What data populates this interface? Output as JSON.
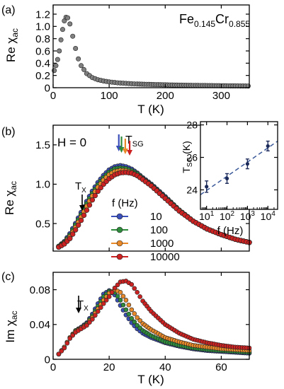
{
  "figure": {
    "panel_a": {
      "label": "(a)",
      "material": {
        "base1": "Fe",
        "sub1": "0.145",
        "base2": "Cr",
        "sub2": "0.855"
      }
    },
    "panel_b": {
      "label": "(b)",
      "field_label": "H = 0",
      "tsg_label": "T",
      "tsg_sub": "SG",
      "tx_label": "T",
      "tx_sub": "X",
      "legend_title": "f (Hz)"
    },
    "panel_c": {
      "label": "(c)",
      "tx_label": "T",
      "tx_sub": "X"
    },
    "inset": {
      "ylabel_main": "T",
      "ylabel_sub": "SG",
      "ylabel_unit": " (K)",
      "xlabel": "f (Hz)"
    }
  },
  "chart_data": [
    {
      "id": "a",
      "type": "scatter",
      "xlabel": "T (K)",
      "ylabel_main": "Re χ",
      "ylabel_sub": "ac",
      "xlim": [
        0,
        350
      ],
      "ylim": [
        0,
        1.35
      ],
      "xticks": [
        0,
        100,
        200,
        300
      ],
      "xtick_labels": [
        "0",
        "100",
        "200",
        "300"
      ],
      "yticks": [
        0,
        0.2,
        0.4,
        0.6,
        0.8,
        1.0,
        1.2
      ],
      "ytick_labels": [
        "0",
        "0.2",
        "0.4",
        "0.6",
        "0.8",
        "1.0",
        "1.2"
      ],
      "series": [
        {
          "color": "#808080",
          "x": [
            2,
            5,
            8,
            11,
            14,
            17,
            20,
            23,
            26,
            30,
            35,
            40,
            45,
            50,
            60,
            70,
            80,
            90,
            100,
            115,
            130,
            150,
            175,
            200,
            225,
            250,
            275,
            300,
            325,
            348
          ],
          "y": [
            0.28,
            0.36,
            0.46,
            0.6,
            0.78,
            0.95,
            1.09,
            1.15,
            1.14,
            1.04,
            0.84,
            0.64,
            0.47,
            0.36,
            0.23,
            0.165,
            0.13,
            0.11,
            0.095,
            0.08,
            0.07,
            0.06,
            0.053,
            0.047,
            0.042,
            0.038,
            0.035,
            0.032,
            0.03,
            0.028
          ]
        }
      ]
    },
    {
      "id": "b",
      "type": "scatter",
      "xlabel": "",
      "ylabel_main": "Re χ",
      "ylabel_sub": "ac",
      "xlim": [
        0,
        70
      ],
      "ylim": [
        0.15,
        1.75
      ],
      "xticks": [
        0,
        20,
        40,
        60
      ],
      "xtick_labels": [],
      "yticks": [
        0.5,
        1.0,
        1.5
      ],
      "ytick_labels": [
        "0.5",
        "1.0",
        "1.5"
      ],
      "series": [
        {
          "name": "10",
          "color": "#3b4fb8",
          "x": [
            2,
            4,
            6,
            8,
            10,
            12,
            14,
            16,
            18,
            20,
            22,
            24,
            26,
            28,
            30,
            32,
            35,
            40,
            45,
            50,
            55,
            60,
            65,
            70
          ],
          "y": [
            0.21,
            0.27,
            0.37,
            0.5,
            0.64,
            0.78,
            0.91,
            1.02,
            1.11,
            1.18,
            1.22,
            1.235,
            1.22,
            1.19,
            1.14,
            1.08,
            1.0,
            0.84,
            0.67,
            0.53,
            0.43,
            0.36,
            0.3,
            0.26
          ]
        },
        {
          "name": "100",
          "color": "#2e8b3c",
          "x": [
            2,
            4,
            6,
            8,
            10,
            12,
            14,
            16,
            18,
            20,
            22,
            24,
            26,
            28,
            30,
            32,
            35,
            40,
            45,
            50,
            55,
            60,
            65,
            70
          ],
          "y": [
            0.21,
            0.26,
            0.35,
            0.48,
            0.61,
            0.75,
            0.88,
            0.99,
            1.08,
            1.15,
            1.195,
            1.205,
            1.195,
            1.17,
            1.13,
            1.07,
            0.99,
            0.83,
            0.67,
            0.53,
            0.43,
            0.36,
            0.3,
            0.26
          ]
        },
        {
          "name": "1000",
          "color": "#e8892a",
          "x": [
            2,
            4,
            6,
            8,
            10,
            12,
            14,
            16,
            18,
            20,
            22,
            24,
            26,
            28,
            30,
            32,
            35,
            40,
            45,
            50,
            55,
            60,
            65,
            70
          ],
          "y": [
            0.2,
            0.25,
            0.33,
            0.45,
            0.58,
            0.72,
            0.85,
            0.96,
            1.05,
            1.12,
            1.16,
            1.175,
            1.17,
            1.15,
            1.11,
            1.06,
            0.98,
            0.82,
            0.66,
            0.53,
            0.43,
            0.36,
            0.3,
            0.26
          ]
        },
        {
          "name": "10000",
          "color": "#cc2222",
          "x": [
            2,
            4,
            6,
            8,
            10,
            12,
            14,
            16,
            18,
            20,
            22,
            24,
            26,
            28,
            30,
            32,
            35,
            40,
            45,
            50,
            55,
            60,
            65,
            70
          ],
          "y": [
            0.2,
            0.24,
            0.31,
            0.42,
            0.54,
            0.67,
            0.8,
            0.91,
            1.0,
            1.07,
            1.12,
            1.145,
            1.15,
            1.14,
            1.11,
            1.06,
            0.98,
            0.82,
            0.66,
            0.53,
            0.43,
            0.36,
            0.3,
            0.26
          ]
        }
      ]
    },
    {
      "id": "inset",
      "type": "scatter",
      "xscale": "log",
      "xlim": [
        5,
        30000
      ],
      "ylim": [
        22.8,
        28.2
      ],
      "xticks": [
        10,
        100,
        1000,
        10000
      ],
      "xtick_labels": [
        [
          "10",
          "1"
        ],
        [
          "10",
          "2"
        ],
        [
          "10",
          "3"
        ],
        [
          "10",
          "4"
        ]
      ],
      "yticks": [
        24,
        26,
        28
      ],
      "ytick_labels": [
        "24",
        "26",
        "28"
      ],
      "points": {
        "x": [
          10,
          100,
          1000,
          10000
        ],
        "y": [
          24.2,
          24.7,
          25.6,
          26.7
        ],
        "err": [
          0.35,
          0.3,
          0.3,
          0.3
        ]
      },
      "fit": {
        "x": [
          5,
          30000
        ],
        "y": [
          23.7,
          27.0
        ],
        "style": "dashed",
        "color": "#3c5a9a"
      }
    },
    {
      "id": "c",
      "type": "scatter",
      "xlabel": "T (K)",
      "ylabel_main": "Im χ",
      "ylabel_sub": "ac",
      "xlim": [
        0,
        70
      ],
      "ylim": [
        0,
        0.1
      ],
      "xticks": [
        0,
        20,
        40,
        60
      ],
      "xtick_labels": [
        "0",
        "20",
        "40",
        "60"
      ],
      "yticks": [
        0,
        0.04,
        0.08
      ],
      "ytick_labels": [
        "0",
        "0.04",
        "0.08"
      ],
      "series": [
        {
          "name": "10",
          "color": "#3b4fb8",
          "x": [
            2,
            4,
            6,
            8,
            10,
            12,
            14,
            16,
            18,
            20,
            22,
            24,
            26,
            28,
            30,
            32,
            35,
            40,
            45,
            50,
            55,
            60,
            65,
            70
          ],
          "y": [
            0.006,
            0.014,
            0.025,
            0.033,
            0.037,
            0.042,
            0.052,
            0.064,
            0.075,
            0.079,
            0.074,
            0.062,
            0.051,
            0.042,
            0.035,
            0.03,
            0.025,
            0.019,
            0.015,
            0.012,
            0.01,
            0.009,
            0.008,
            0.007
          ]
        },
        {
          "name": "100",
          "color": "#2e8b3c",
          "x": [
            2,
            4,
            6,
            8,
            10,
            12,
            14,
            16,
            18,
            20,
            22,
            24,
            26,
            28,
            30,
            32,
            35,
            40,
            45,
            50,
            55,
            60,
            65,
            70
          ],
          "y": [
            0.006,
            0.014,
            0.025,
            0.033,
            0.036,
            0.041,
            0.05,
            0.061,
            0.072,
            0.078,
            0.077,
            0.068,
            0.057,
            0.047,
            0.039,
            0.033,
            0.027,
            0.02,
            0.016,
            0.013,
            0.011,
            0.01,
            0.009,
            0.008
          ]
        },
        {
          "name": "1000",
          "color": "#e8892a",
          "x": [
            2,
            4,
            6,
            8,
            10,
            12,
            14,
            16,
            18,
            20,
            22,
            24,
            26,
            28,
            30,
            32,
            35,
            40,
            45,
            50,
            55,
            60,
            65,
            70
          ],
          "y": [
            0.006,
            0.014,
            0.025,
            0.032,
            0.036,
            0.04,
            0.048,
            0.058,
            0.068,
            0.076,
            0.08,
            0.077,
            0.068,
            0.057,
            0.048,
            0.041,
            0.034,
            0.025,
            0.02,
            0.016,
            0.014,
            0.012,
            0.011,
            0.01
          ]
        },
        {
          "name": "10000",
          "color": "#cc2222",
          "x": [
            2,
            4,
            6,
            8,
            10,
            12,
            14,
            16,
            18,
            20,
            22,
            24,
            26,
            28,
            30,
            32,
            35,
            40,
            45,
            50,
            55,
            60,
            65,
            70
          ],
          "y": [
            0.006,
            0.013,
            0.024,
            0.031,
            0.035,
            0.039,
            0.046,
            0.055,
            0.064,
            0.072,
            0.082,
            0.089,
            0.09,
            0.086,
            0.077,
            0.067,
            0.055,
            0.04,
            0.03,
            0.023,
            0.019,
            0.016,
            0.014,
            0.013
          ]
        }
      ]
    }
  ]
}
